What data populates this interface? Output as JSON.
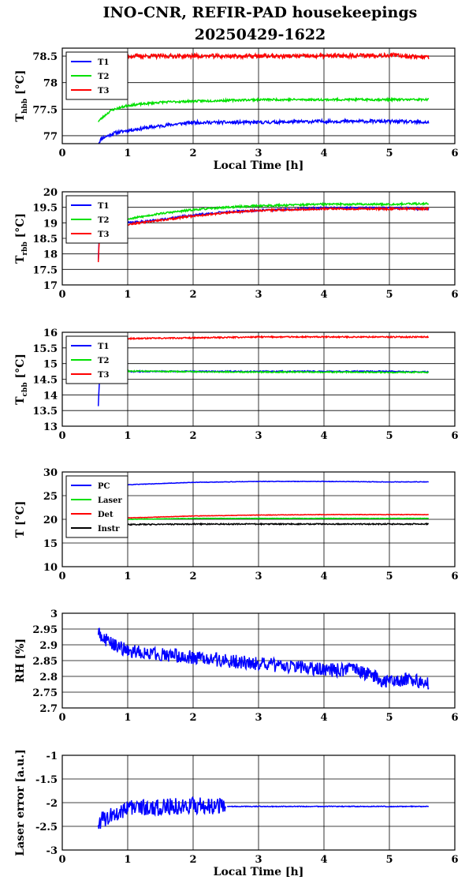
{
  "title": {
    "line1": "INO-CNR, REFIR-PAD housekeepings",
    "line2": "20250429-1622"
  },
  "chart_data": [
    {
      "id": "hbb",
      "type": "line",
      "ylabel": {
        "main": "T",
        "sub": "hbb",
        "unit": " [°C]"
      },
      "xlabel": "Local Time [h]",
      "xlim": [
        0,
        6
      ],
      "ylim": [
        76.85,
        78.65
      ],
      "xticks": [
        "0",
        "1",
        "2",
        "3",
        "4",
        "5",
        "6"
      ],
      "yticks": [
        {
          "v": 77,
          "t": "77"
        },
        {
          "v": 77.5,
          "t": "77.5"
        },
        {
          "v": 78,
          "t": "78"
        },
        {
          "v": 78.5,
          "t": "78.5"
        }
      ],
      "grid": true,
      "legend_position": "top-left",
      "series": [
        {
          "name": "T1",
          "color": "#0000ff",
          "noise": 0.03,
          "seed": 11,
          "points": [
            [
              0.55,
              76.85
            ],
            [
              0.6,
              76.95
            ],
            [
              0.7,
              77.0
            ],
            [
              0.8,
              77.05
            ],
            [
              1.0,
              77.1
            ],
            [
              1.3,
              77.15
            ],
            [
              1.6,
              77.2
            ],
            [
              2.0,
              77.25
            ],
            [
              2.5,
              77.25
            ],
            [
              3.0,
              77.25
            ],
            [
              4.0,
              77.27
            ],
            [
              5.0,
              77.27
            ],
            [
              5.6,
              77.25
            ]
          ]
        },
        {
          "name": "T2",
          "color": "#00e000",
          "noise": 0.02,
          "seed": 23,
          "points": [
            [
              0.55,
              77.27
            ],
            [
              0.65,
              77.38
            ],
            [
              0.75,
              77.48
            ],
            [
              1.0,
              77.57
            ],
            [
              1.5,
              77.63
            ],
            [
              2.0,
              77.65
            ],
            [
              3.0,
              77.68
            ],
            [
              4.0,
              77.68
            ],
            [
              5.0,
              77.68
            ],
            [
              5.6,
              77.68
            ]
          ]
        },
        {
          "name": "T3",
          "color": "#ff0000",
          "noise": 0.04,
          "seed": 37,
          "points": [
            [
              0.55,
              78.5
            ],
            [
              1.0,
              78.5
            ],
            [
              2.0,
              78.5
            ],
            [
              3.0,
              78.5
            ],
            [
              4.0,
              78.5
            ],
            [
              5.0,
              78.52
            ],
            [
              5.6,
              78.48
            ]
          ]
        }
      ]
    },
    {
      "id": "rbb",
      "type": "line",
      "ylabel": {
        "main": "T",
        "sub": "rbb",
        "unit": " [°C]"
      },
      "xlabel": "",
      "xlim": [
        0,
        6
      ],
      "ylim": [
        17,
        20
      ],
      "xticks": [
        "0",
        "1",
        "2",
        "3",
        "4",
        "5",
        "6"
      ],
      "yticks": [
        {
          "v": 17,
          "t": "17"
        },
        {
          "v": 17.5,
          "t": "17.5"
        },
        {
          "v": 18,
          "t": "18"
        },
        {
          "v": 18.5,
          "t": "18.5"
        },
        {
          "v": 19,
          "t": "19"
        },
        {
          "v": 19.5,
          "t": "19.5"
        },
        {
          "v": 20,
          "t": "20"
        }
      ],
      "grid": true,
      "legend_position": "top-left",
      "series": [
        {
          "name": "T1",
          "color": "#0000ff",
          "noise": 0.03,
          "seed": 41,
          "points": [
            [
              0.55,
              17.8
            ],
            [
              0.57,
              18.7
            ],
            [
              0.6,
              18.9
            ],
            [
              1.0,
              19.0
            ],
            [
              1.5,
              19.1
            ],
            [
              2.0,
              19.25
            ],
            [
              2.5,
              19.35
            ],
            [
              3.0,
              19.4
            ],
            [
              4.0,
              19.48
            ],
            [
              5.0,
              19.48
            ],
            [
              5.6,
              19.45
            ]
          ]
        },
        {
          "name": "T2",
          "color": "#00e000",
          "noise": 0.03,
          "seed": 53,
          "points": [
            [
              0.55,
              18.7
            ],
            [
              0.6,
              18.95
            ],
            [
              1.0,
              19.12
            ],
            [
              1.5,
              19.3
            ],
            [
              2.0,
              19.42
            ],
            [
              2.5,
              19.5
            ],
            [
              3.0,
              19.55
            ],
            [
              4.0,
              19.6
            ],
            [
              5.0,
              19.6
            ],
            [
              5.6,
              19.62
            ]
          ]
        },
        {
          "name": "T3",
          "color": "#ff0000",
          "noise": 0.03,
          "seed": 67,
          "points": [
            [
              0.55,
              17.75
            ],
            [
              0.57,
              18.6
            ],
            [
              0.6,
              18.85
            ],
            [
              1.0,
              18.95
            ],
            [
              1.5,
              19.08
            ],
            [
              2.0,
              19.22
            ],
            [
              2.5,
              19.32
            ],
            [
              3.0,
              19.4
            ],
            [
              4.0,
              19.45
            ],
            [
              5.0,
              19.45
            ],
            [
              5.6,
              19.45
            ]
          ]
        }
      ]
    },
    {
      "id": "cbb",
      "type": "line",
      "ylabel": {
        "main": "T",
        "sub": "cbb",
        "unit": " [°C]"
      },
      "xlabel": "",
      "xlim": [
        0,
        6
      ],
      "ylim": [
        13,
        16
      ],
      "xticks": [
        "0",
        "1",
        "2",
        "3",
        "4",
        "5",
        "6"
      ],
      "yticks": [
        {
          "v": 13,
          "t": "13"
        },
        {
          "v": 13.5,
          "t": "13.5"
        },
        {
          "v": 14,
          "t": "14"
        },
        {
          "v": 14.5,
          "t": "14.5"
        },
        {
          "v": 15,
          "t": "15"
        },
        {
          "v": 15.5,
          "t": "15.5"
        },
        {
          "v": 16,
          "t": "16"
        }
      ],
      "grid": true,
      "legend_position": "top-left",
      "series": [
        {
          "name": "T1",
          "color": "#0000ff",
          "noise": 0.02,
          "seed": 71,
          "points": [
            [
              0.55,
              13.65
            ],
            [
              0.57,
              14.5
            ],
            [
              0.6,
              14.72
            ],
            [
              1.0,
              14.75
            ],
            [
              2.0,
              14.75
            ],
            [
              3.0,
              14.75
            ],
            [
              4.0,
              14.75
            ],
            [
              5.0,
              14.75
            ],
            [
              5.6,
              14.73
            ]
          ]
        },
        {
          "name": "T2",
          "color": "#00e000",
          "noise": 0.02,
          "seed": 83,
          "points": [
            [
              0.6,
              14.78
            ],
            [
              1.0,
              14.76
            ],
            [
              2.0,
              14.74
            ],
            [
              3.0,
              14.73
            ],
            [
              4.0,
              14.73
            ],
            [
              5.0,
              14.72
            ],
            [
              5.6,
              14.72
            ]
          ]
        },
        {
          "name": "T3",
          "color": "#ff0000",
          "noise": 0.02,
          "seed": 97,
          "points": [
            [
              0.55,
              15.78
            ],
            [
              1.0,
              15.8
            ],
            [
              2.0,
              15.82
            ],
            [
              3.0,
              15.85
            ],
            [
              4.0,
              15.85
            ],
            [
              5.0,
              15.85
            ],
            [
              5.6,
              15.85
            ]
          ]
        }
      ]
    },
    {
      "id": "temps",
      "type": "line",
      "ylabel": {
        "main": "T [°C]",
        "sub": "",
        "unit": ""
      },
      "xlabel": "",
      "xlim": [
        0,
        6
      ],
      "ylim": [
        10,
        30
      ],
      "xticks": [
        "0",
        "1",
        "2",
        "3",
        "4",
        "5",
        "6"
      ],
      "yticks": [
        {
          "v": 10,
          "t": "10"
        },
        {
          "v": 15,
          "t": "15"
        },
        {
          "v": 20,
          "t": "20"
        },
        {
          "v": 25,
          "t": "25"
        },
        {
          "v": 30,
          "t": "30"
        }
      ],
      "grid": true,
      "legend_position": "top-left",
      "series": [
        {
          "name": "PC",
          "color": "#0000ff",
          "noise": 0.05,
          "seed": 101,
          "points": [
            [
              0.55,
              27.0
            ],
            [
              1.0,
              27.3
            ],
            [
              2.0,
              27.8
            ],
            [
              3.0,
              28.0
            ],
            [
              4.0,
              28.0
            ],
            [
              5.0,
              27.9
            ],
            [
              5.6,
              27.9
            ]
          ]
        },
        {
          "name": "Laser",
          "color": "#00e000",
          "noise": 0.05,
          "seed": 113,
          "points": [
            [
              0.55,
              19.8
            ],
            [
              1.0,
              20.0
            ],
            [
              2.0,
              20.2
            ],
            [
              3.0,
              20.2
            ],
            [
              4.0,
              20.2
            ],
            [
              5.0,
              20.2
            ],
            [
              5.6,
              20.2
            ]
          ]
        },
        {
          "name": "Det",
          "color": "#ff0000",
          "noise": 0.05,
          "seed": 127,
          "points": [
            [
              0.55,
              20.0
            ],
            [
              1.0,
              20.3
            ],
            [
              2.0,
              20.7
            ],
            [
              3.0,
              20.9
            ],
            [
              4.0,
              21.0
            ],
            [
              5.0,
              21.0
            ],
            [
              5.6,
              21.0
            ]
          ]
        },
        {
          "name": "Instr",
          "color": "#000000",
          "noise": 0.12,
          "seed": 131,
          "points": [
            [
              0.55,
              18.8
            ],
            [
              1.0,
              18.9
            ],
            [
              2.0,
              19.0
            ],
            [
              3.0,
              19.0
            ],
            [
              4.0,
              19.0
            ],
            [
              5.0,
              19.0
            ],
            [
              5.6,
              19.0
            ]
          ]
        }
      ]
    },
    {
      "id": "rh",
      "type": "line",
      "ylabel": {
        "main": "RH [%]",
        "sub": "",
        "unit": ""
      },
      "xlabel": "",
      "xlim": [
        0,
        6
      ],
      "ylim": [
        2.7,
        3.0
      ],
      "xticks": [
        "0",
        "1",
        "2",
        "3",
        "4",
        "5",
        "6"
      ],
      "yticks": [
        {
          "v": 2.7,
          "t": "2.7"
        },
        {
          "v": 2.75,
          "t": "2.75"
        },
        {
          "v": 2.8,
          "t": "2.8"
        },
        {
          "v": 2.85,
          "t": "2.85"
        },
        {
          "v": 2.9,
          "t": "2.9"
        },
        {
          "v": 2.95,
          "t": "2.95"
        },
        {
          "v": 3.0,
          "t": "3"
        }
      ],
      "grid": true,
      "legend_position": "none",
      "series": [
        {
          "name": "",
          "color": "#0000ff",
          "noise": 0.022,
          "seed": 149,
          "points": [
            [
              0.55,
              2.94
            ],
            [
              0.7,
              2.91
            ],
            [
              1.0,
              2.88
            ],
            [
              1.5,
              2.87
            ],
            [
              2.0,
              2.86
            ],
            [
              2.5,
              2.85
            ],
            [
              3.0,
              2.84
            ],
            [
              3.5,
              2.83
            ],
            [
              4.0,
              2.82
            ],
            [
              4.5,
              2.82
            ],
            [
              5.0,
              2.78
            ],
            [
              5.3,
              2.79
            ],
            [
              5.6,
              2.78
            ]
          ]
        }
      ]
    },
    {
      "id": "laser",
      "type": "line",
      "ylabel": {
        "main": "Laser error [a.u.]",
        "sub": "",
        "unit": ""
      },
      "xlabel": "Local Time [h]",
      "xlim": [
        0,
        6
      ],
      "ylim": [
        -3,
        -1
      ],
      "xticks": [
        "0",
        "1",
        "2",
        "3",
        "4",
        "5",
        "6"
      ],
      "yticks": [
        {
          "v": -3,
          "t": "-3"
        },
        {
          "v": -2.5,
          "t": "-2.5"
        },
        {
          "v": -2,
          "t": "-2"
        },
        {
          "v": -1.5,
          "t": "-1.5"
        },
        {
          "v": -1,
          "t": "-1"
        }
      ],
      "grid": true,
      "legend_position": "none",
      "series": [
        {
          "name": "",
          "color": "#0000ff",
          "noise": 0.18,
          "seed": 163,
          "points": [
            [
              0.55,
              -2.4
            ],
            [
              1.0,
              -2.1
            ],
            [
              1.5,
              -2.1
            ],
            [
              2.0,
              -2.05
            ],
            [
              2.5,
              -2.1
            ]
          ]
        },
        {
          "name": "",
          "color": "#0000ff",
          "noise": 0.008,
          "seed": 179,
          "points": [
            [
              2.52,
              -2.08
            ],
            [
              3.0,
              -2.08
            ],
            [
              4.0,
              -2.08
            ],
            [
              5.0,
              -2.08
            ],
            [
              5.6,
              -2.08
            ]
          ]
        }
      ]
    }
  ]
}
